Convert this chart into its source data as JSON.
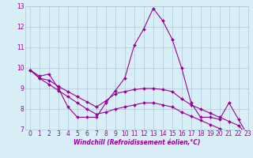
{
  "xlabel": "Windchill (Refroidissement éolien,°C)",
  "x": [
    0,
    1,
    2,
    3,
    4,
    5,
    6,
    7,
    8,
    9,
    10,
    11,
    12,
    13,
    14,
    15,
    16,
    17,
    18,
    19,
    20,
    21,
    22,
    23
  ],
  "y_line1": [
    9.9,
    9.6,
    9.7,
    9.0,
    8.1,
    7.6,
    7.6,
    7.6,
    8.3,
    8.9,
    9.5,
    11.1,
    11.9,
    12.9,
    12.3,
    11.4,
    10.0,
    8.3,
    7.6,
    7.6,
    7.5,
    8.3,
    7.5,
    6.7
  ],
  "y_line2": [
    9.9,
    9.5,
    9.4,
    9.1,
    8.85,
    8.6,
    8.35,
    8.1,
    8.4,
    8.75,
    8.85,
    8.95,
    9.0,
    9.0,
    8.95,
    8.85,
    8.5,
    8.2,
    8.0,
    7.8,
    7.6,
    7.4,
    7.2,
    6.7
  ],
  "y_line3": [
    9.9,
    9.5,
    9.2,
    8.9,
    8.6,
    8.3,
    8.0,
    7.75,
    7.85,
    8.0,
    8.1,
    8.2,
    8.3,
    8.3,
    8.2,
    8.1,
    7.85,
    7.65,
    7.45,
    7.25,
    7.05,
    6.85,
    6.75,
    6.7
  ],
  "line_color": "#990099",
  "bg_color": "#d8eff8",
  "grid_color": "#b0c8d8",
  "ylim": [
    7,
    13
  ],
  "xlim": [
    -0.5,
    23
  ],
  "yticks": [
    7,
    8,
    9,
    10,
    11,
    12,
    13
  ],
  "xticks": [
    0,
    1,
    2,
    3,
    4,
    5,
    6,
    7,
    8,
    9,
    10,
    11,
    12,
    13,
    14,
    15,
    16,
    17,
    18,
    19,
    20,
    21,
    22,
    23
  ],
  "tick_fontsize": 5.5,
  "xlabel_fontsize": 5.5
}
